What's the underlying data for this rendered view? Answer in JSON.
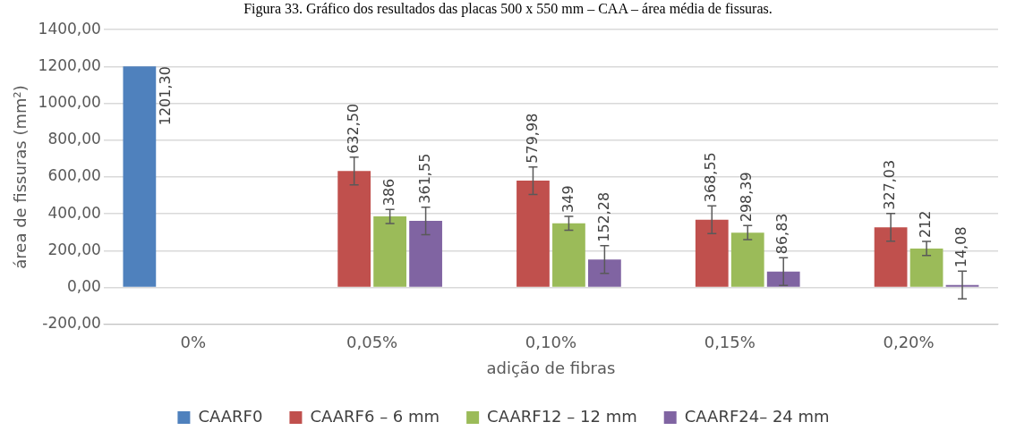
{
  "chart_data": {
    "type": "bar",
    "title": "Figura 33. Gráfico dos resultados das placas 500 x 550 mm – CAA – área média de fissuras.",
    "xlabel": "adição de fibras",
    "ylabel": "área de fissuras (mm²)",
    "categories": [
      "0%",
      "0,05%",
      "0,10%",
      "0,15%",
      "0,20%"
    ],
    "series": [
      {
        "name": "CAARF0",
        "color": "#4f81bd",
        "values": [
          1201.3,
          null,
          null,
          null,
          null
        ],
        "value_labels": [
          "1201,30",
          null,
          null,
          null,
          null
        ]
      },
      {
        "name": "CAARF6 – 6 mm",
        "color": "#c0504d",
        "values": [
          null,
          632.5,
          579.98,
          368.55,
          327.03
        ],
        "errors": [
          null,
          75,
          75,
          75,
          75
        ],
        "value_labels": [
          null,
          "632,50",
          "579,98",
          "368,55",
          "327,03"
        ]
      },
      {
        "name": "CAARF12 – 12 mm",
        "color": "#9bbb59",
        "values": [
          null,
          386,
          349,
          298.39,
          212
        ],
        "errors": [
          null,
          38,
          38,
          38,
          38
        ],
        "value_labels": [
          null,
          "386",
          "349",
          "298,39",
          "212"
        ]
      },
      {
        "name": "CAARF24– 24 mm",
        "color": "#8064a2",
        "values": [
          null,
          361.55,
          152.28,
          86.83,
          14.08
        ],
        "errors": [
          null,
          75,
          75,
          75,
          75
        ],
        "value_labels": [
          null,
          "361,55",
          "152,28",
          "86,83",
          "14,08"
        ]
      }
    ],
    "ylim": [
      -200,
      1400
    ],
    "yticks": [
      {
        "value": -200,
        "label": "-200,00"
      },
      {
        "value": 0,
        "label": "0,00"
      },
      {
        "value": 200,
        "label": "200,00"
      },
      {
        "value": 400,
        "label": "400,00"
      },
      {
        "value": 600,
        "label": "600,00"
      },
      {
        "value": 800,
        "label": "800,00"
      },
      {
        "value": 1000,
        "label": "1000,00"
      },
      {
        "value": 1200,
        "label": "1200,00"
      },
      {
        "value": 1400,
        "label": "1400,00"
      }
    ],
    "grid": "y",
    "legend": "bottom"
  }
}
